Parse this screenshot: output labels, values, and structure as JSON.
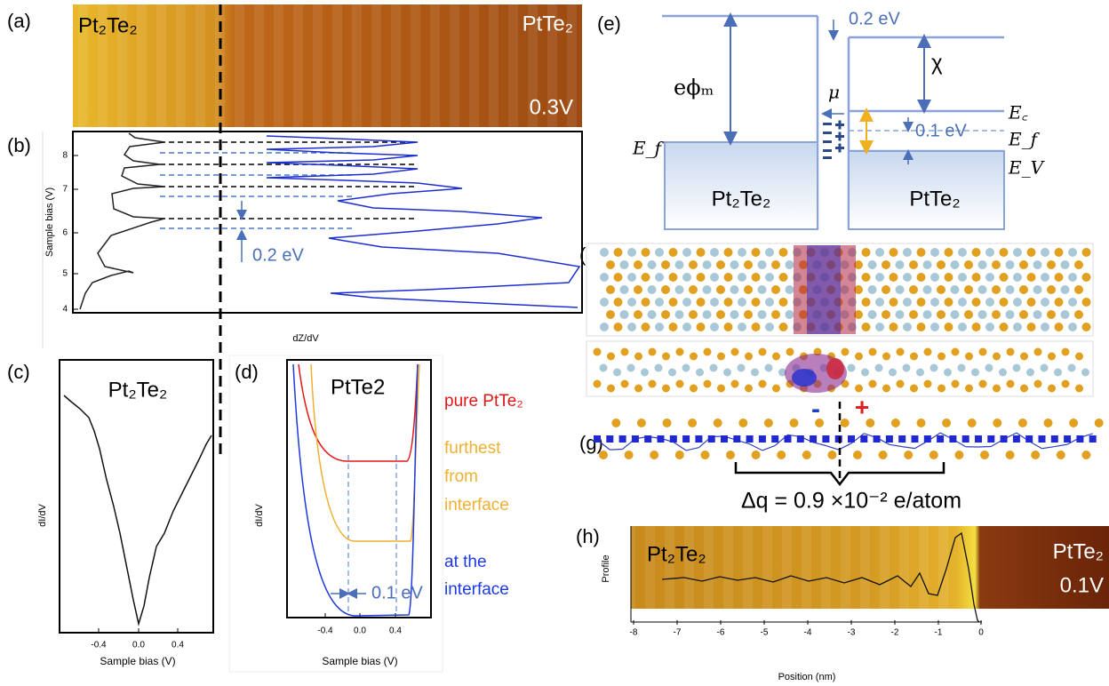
{
  "panels": {
    "a": {
      "label": "(a)",
      "left": "Pt₂Te₂",
      "right": "PtTe₂",
      "bias": "0.3V"
    },
    "b": {
      "label": "(b)",
      "y_label": "Sample bias (V)",
      "x_label": "dZ/dV",
      "yticks": [
        "8",
        "7",
        "6",
        "5",
        "4"
      ],
      "annotation": "0.2 eV"
    },
    "c": {
      "label": "(c)",
      "title": "Pt₂Te₂",
      "y_label": "dI/dV",
      "x_label": "Sample bias (V)",
      "xticks": [
        "-0.4",
        "0.0",
        "0.4"
      ]
    },
    "d": {
      "label": "(d)",
      "title": "PtTe2",
      "y_label": "dI/dV",
      "x_label": "Sample bias (V)",
      "xticks": [
        "-0.4",
        "0.0",
        "0.4"
      ],
      "legend": {
        "pure": "pure PtTe₂",
        "furthest": [
          "furthest",
          "from",
          "interface"
        ],
        "interface": [
          "at the",
          "interface"
        ]
      },
      "gap": "0.1 eV"
    },
    "e": {
      "label": "(e)",
      "offset": "0.2 eV",
      "chi": "χ",
      "work_function": "eϕₘ",
      "mu": "μ",
      "ec": "E꜀",
      "band_gap": "0.1 eV",
      "ef_right": "E_f",
      "ev": "E_V",
      "ef_left": "E_f",
      "left": "Pt₂Te₂",
      "right": "PtTe₂"
    },
    "f": {
      "label": "(f)",
      "minus": "-",
      "plus": "+"
    },
    "g": {
      "label": "(g)",
      "charge": "Δq = 0.9 ×10⁻² e/atom"
    },
    "h": {
      "label": "(h)",
      "left": "Pt₂Te₂",
      "right": "PtTe₂",
      "bias": "0.1V",
      "y_label": "Profile",
      "x_label": "Position (nm)",
      "xticks": [
        "-8",
        "-7",
        "-6",
        "-5",
        "-4",
        "-3",
        "-2",
        "-1",
        "0"
      ]
    }
  }
}
